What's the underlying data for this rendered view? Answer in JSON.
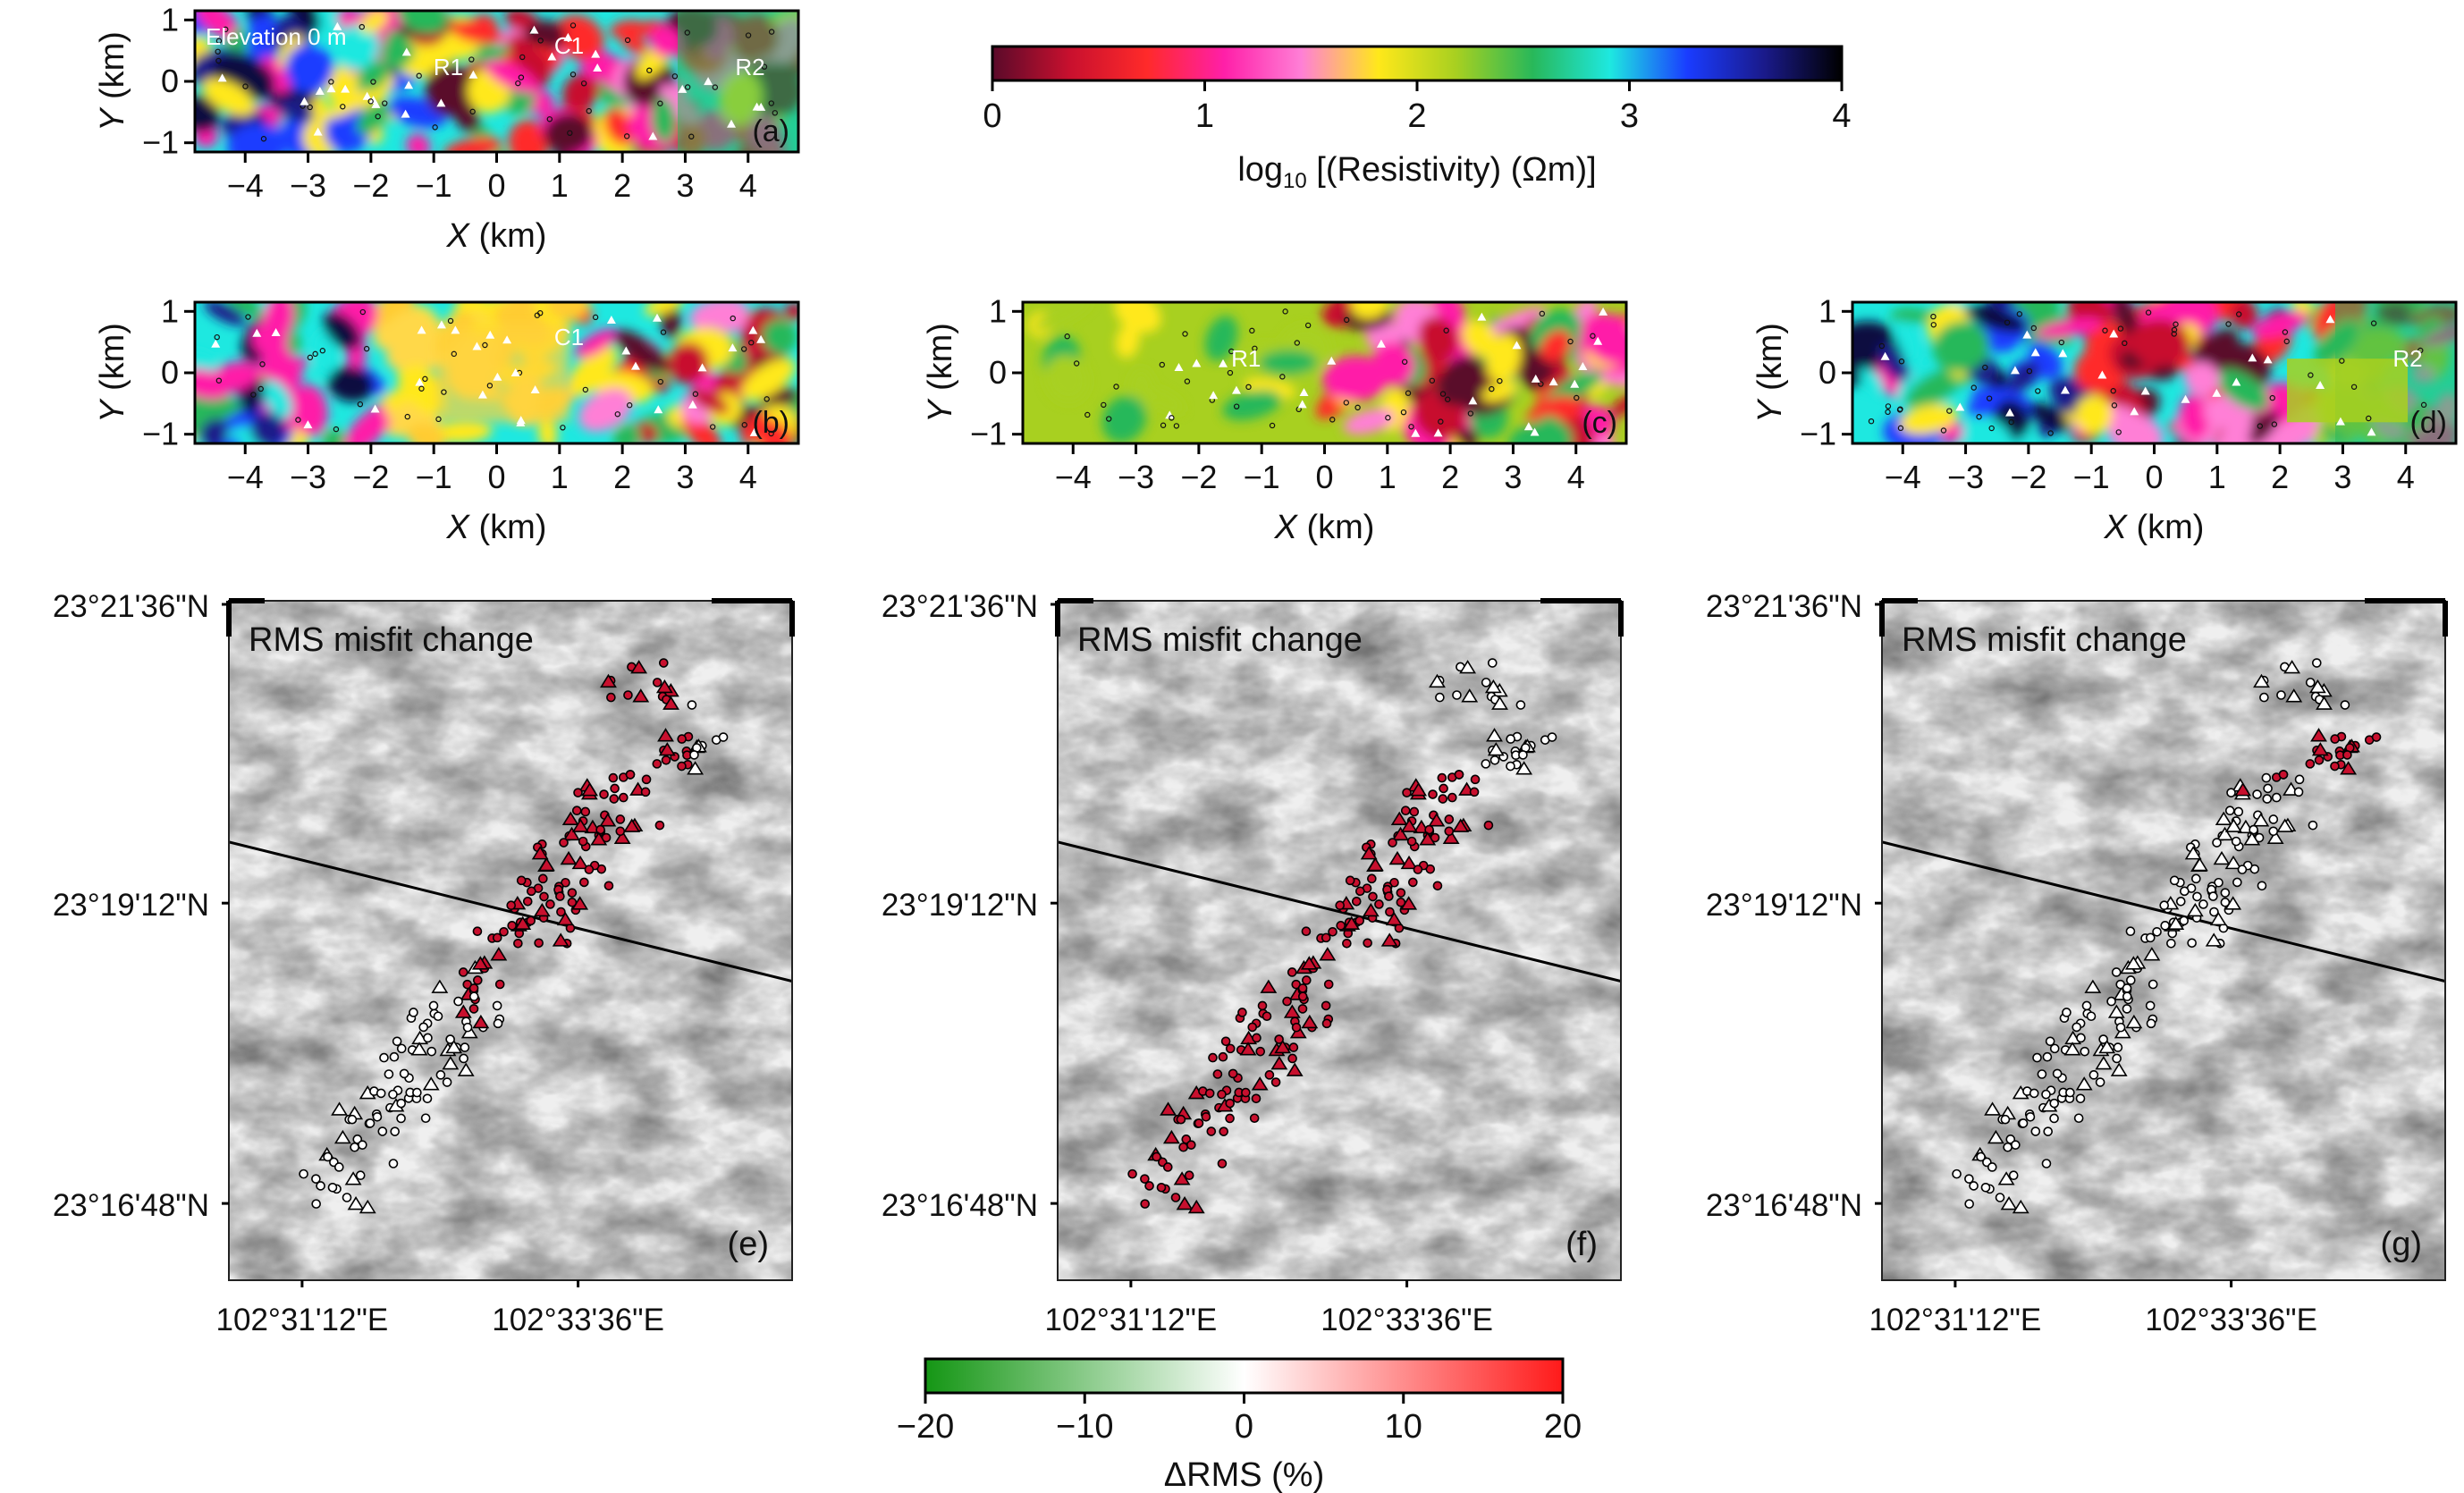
{
  "resistivity_panels": [
    {
      "id": "a",
      "label": "(a)",
      "note": "Elevation 0 m",
      "features": [
        "R1",
        "C1",
        "R2"
      ],
      "variant": 0
    },
    {
      "id": "b",
      "label": "(b)",
      "note": "",
      "features": [
        "C1"
      ],
      "variant": 1
    },
    {
      "id": "c",
      "label": "(c)",
      "note": "",
      "features": [
        "R1"
      ],
      "variant": 2
    },
    {
      "id": "d",
      "label": "(d)",
      "note": "",
      "features": [
        "R2"
      ],
      "variant": 3
    }
  ],
  "xsec_axes": {
    "x_label_var": "X",
    "x_label_unit": "(km)",
    "y_label_var": "Y",
    "y_label_unit": "(km)",
    "x_ticks": [
      "−4",
      "−3",
      "−2",
      "−1",
      "0",
      "1",
      "2",
      "3",
      "4"
    ],
    "y_ticks": [
      "1",
      "0",
      "−1"
    ]
  },
  "resistivity_colorbar": {
    "label_prefix": "log",
    "label_sub": "10",
    "label_rest": " [(Resistivity) (Ωm)]",
    "ticks": [
      "0",
      "1",
      "2",
      "3",
      "4"
    ],
    "range": [
      0,
      4
    ],
    "colors": [
      "#5a0a2a",
      "#c8102e",
      "#ff2a2a",
      "#ff1fa8",
      "#ff7fd6",
      "#ffe81a",
      "#a8d020",
      "#28b85a",
      "#1ee8e0",
      "#1a3cff",
      "#1a1a8a",
      "#000000"
    ]
  },
  "map_panels": [
    {
      "id": "e",
      "label": "(e)",
      "title": "RMS misfit change",
      "variant": "e"
    },
    {
      "id": "f",
      "label": "(f)",
      "title": "RMS misfit change",
      "variant": "f"
    },
    {
      "id": "g",
      "label": "(g)",
      "title": "RMS misfit change",
      "variant": "g"
    }
  ],
  "map_axes": {
    "lat_ticks": [
      "23°21'36\"N",
      "23°19'12\"N",
      "23°16'48\"N"
    ],
    "lon_ticks": [
      "102°31'12\"E",
      "102°33'36\"E"
    ]
  },
  "rms_colorbar": {
    "label": "ΔRMS (%)",
    "ticks": [
      "−20",
      "−10",
      "0",
      "10",
      "20"
    ],
    "range": [
      -20,
      20
    ],
    "colors": [
      "#149614",
      "#ffffff",
      "#ff1a1a"
    ]
  }
}
